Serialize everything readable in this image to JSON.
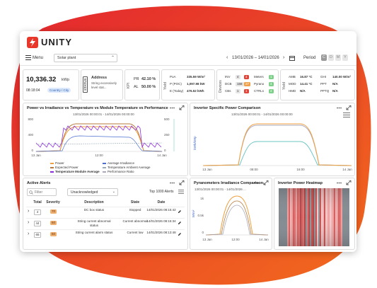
{
  "header": {
    "brand": "UNITY",
    "menu": "Menu",
    "plant": "Solar plant",
    "date_range": "13/01/2026 – 14/01/2026",
    "period_label": "Period",
    "periods": [
      "C",
      "D",
      "M",
      "Y"
    ]
  },
  "kpis": {
    "capacity": {
      "value": "10,336.32",
      "unit": "kWp",
      "time": "08:18:04",
      "location": "Country / City"
    },
    "status": {
      "label": "STATUS",
      "title": "Address",
      "text": "String excessively level stat..."
    },
    "kpi": {
      "label": "KPI",
      "rows": [
        [
          "PR",
          "42.10 %"
        ],
        [
          "AL",
          "50.00 %"
        ]
      ]
    },
    "yield": {
      "label": "Yield",
      "rows": [
        [
          "PoA",
          "335.59 W/m²"
        ],
        [
          "P (POC)",
          "1,097.98 kW"
        ],
        [
          "E (Today)",
          "476.52 kWh"
        ]
      ]
    },
    "devices": {
      "label": "Devices",
      "rows": [
        [
          "INV",
          "4",
          "4"
        ],
        [
          "DCB",
          "168",
          "27"
        ],
        [
          "CBs",
          "1",
          "1"
        ]
      ],
      "rows2": [
        [
          "Meters",
          "1"
        ],
        [
          "Pyrano",
          "4"
        ],
        [
          "CTRLs",
          "4"
        ]
      ]
    },
    "weather": {
      "label": "Yield",
      "rows": [
        [
          "AMB",
          "16.87 °C"
        ],
        [
          "MOD",
          "14.41 °C"
        ],
        [
          "HMD",
          "N/A"
        ]
      ],
      "rows2": [
        [
          "GHI",
          "140.00 W/m²"
        ],
        [
          "PPT",
          "N/A"
        ],
        [
          "PPTQ",
          "N/A"
        ]
      ]
    }
  },
  "power_chart": {
    "title": "Power vs Irradiance vs Temperature vs Module Temperature vs Performance",
    "subtitle": "13/01/2026 00:00:01 - 14/01/2026 00:00:00",
    "y_left": [
      "800",
      "400",
      "0"
    ],
    "y_right": [
      "500",
      "250",
      "0"
    ],
    "x_labels": [
      "13 Jan",
      "12:00",
      "14 Jan"
    ],
    "legend": [
      "Power",
      "Expected Power",
      "Temperature Module Average",
      "Average Irradiance",
      "Temperature Ambient Average",
      "Performance Ratio"
    ]
  },
  "inverter_chart": {
    "title": "Inverter Specific Power Comparison",
    "subtitle": "13/01/2026 00:00:01 - 14/01/2026 00:00:00",
    "y_label": "kWh/kWp",
    "x_labels": [
      "13 Jan",
      "08:00",
      "16:00",
      "14 Jan"
    ]
  },
  "alerts": {
    "title": "Active Alerts",
    "filter": "Filter",
    "status_filter": "Unacknowledged",
    "count": "Top 1000 Alerts",
    "columns": [
      "Total",
      "Severity",
      "Description",
      "State",
      "Date"
    ],
    "rows": [
      [
        "4",
        "70",
        "DC box status",
        "Stopped",
        "14/01/2026 08:15:42"
      ],
      [
        "44",
        "60",
        "String current abnormal status",
        "Current abnormal",
        "14/01/2026 08:15:34"
      ],
      [
        "65",
        "60",
        "String current alarm status",
        "Current low",
        "14/01/2026 08:13:48"
      ]
    ]
  },
  "pyranometer": {
    "title": "Pyranometers Irradiance Comparison",
    "subtitle": "13/01/2026 00:00:01 - 14/01/2026 ...",
    "y_label": "W/m²",
    "y_ticks": [
      "1k",
      "0.5k",
      "0"
    ],
    "x_labels": [
      "13 Jan",
      "12:00",
      "14 Jan"
    ]
  },
  "heatmap": {
    "title": "Inverter Power Heatmap"
  }
}
